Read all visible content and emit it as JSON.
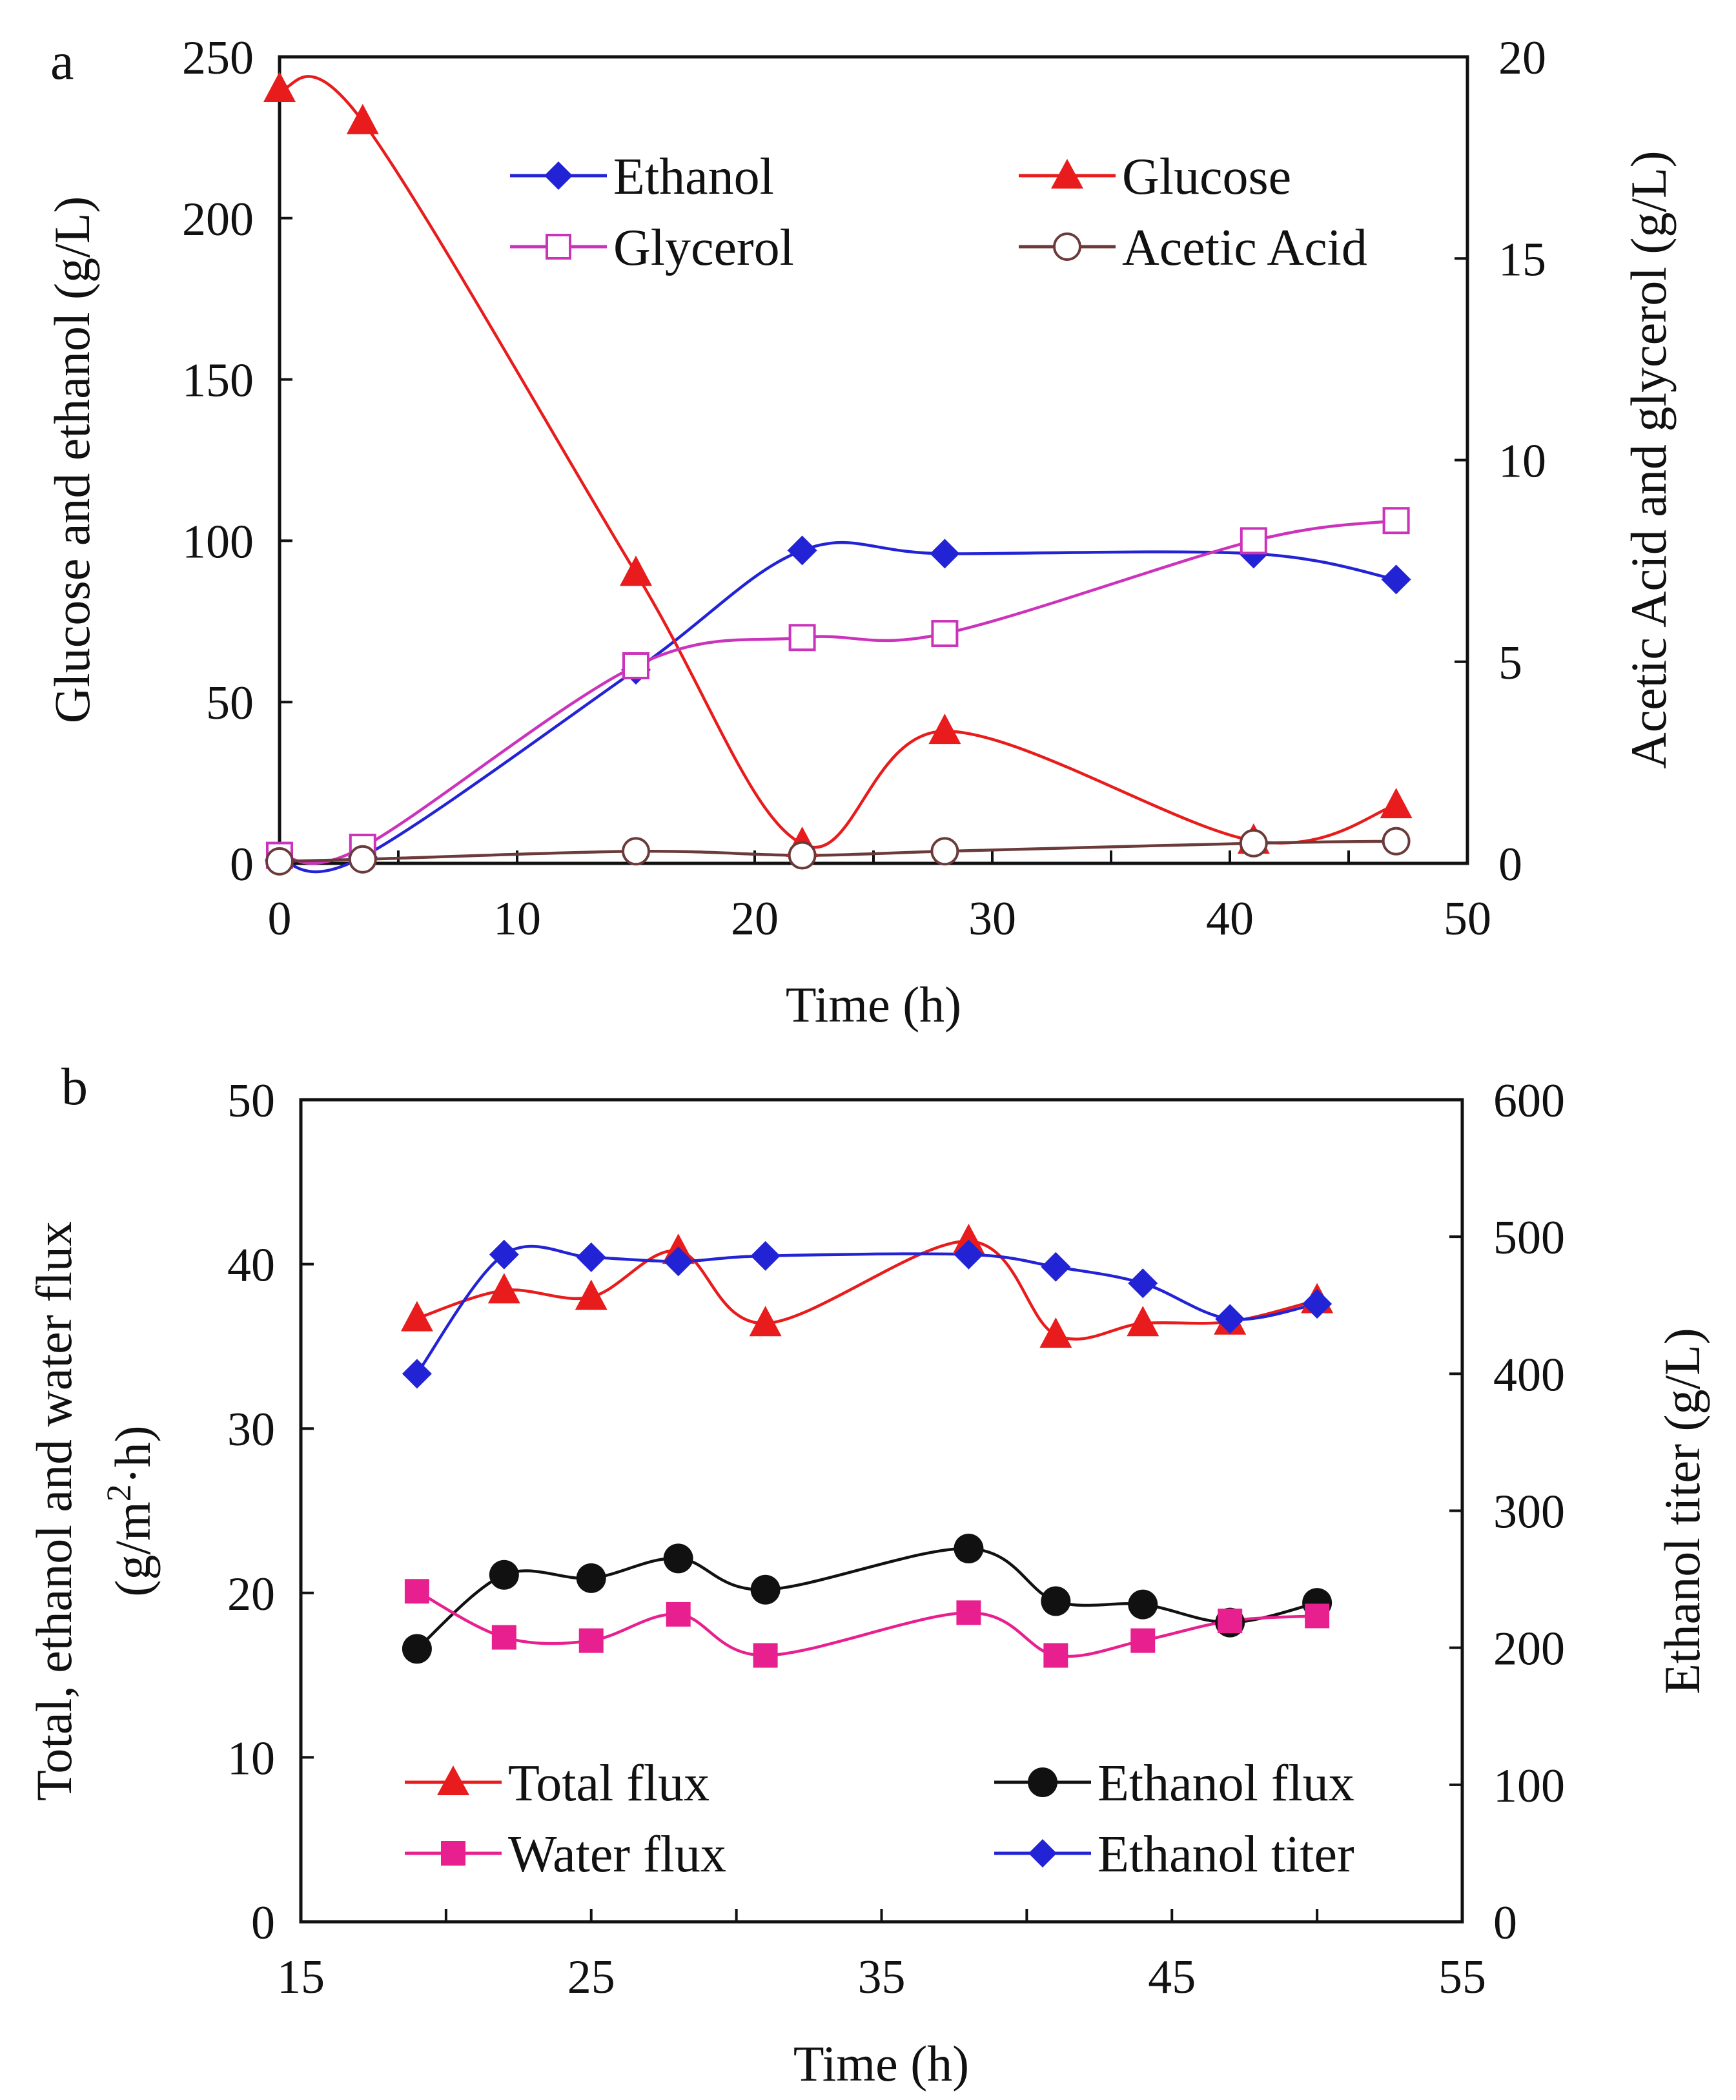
{
  "chart_data": [
    {
      "panel": "a",
      "type": "line",
      "xlabel": "Time (h)",
      "ylabel_left": "Glucose and ethanol (g/L)",
      "ylabel_right": "Acetic Acid and glycerol (g/L)",
      "xlim": [
        0,
        50
      ],
      "ylim_left": [
        0,
        250
      ],
      "ylim_right": [
        0,
        20
      ],
      "x_ticks": [
        0,
        10,
        20,
        30,
        40,
        50
      ],
      "y_left_ticks": [
        0,
        50,
        100,
        150,
        200,
        250
      ],
      "y_right_ticks": [
        0,
        5,
        10,
        15,
        20
      ],
      "legend_position": "top",
      "series": [
        {
          "name": "Ethanol",
          "axis": "left",
          "color": "#2323d6",
          "marker": "diamond",
          "x": [
            0,
            3.5,
            15,
            22,
            28,
            41,
            47
          ],
          "values": [
            1,
            2,
            60,
            97,
            96,
            96,
            88
          ]
        },
        {
          "name": "Glucose",
          "axis": "left",
          "color": "#e81c1c",
          "marker": "triangle",
          "x": [
            0,
            3.5,
            15,
            22,
            28,
            41,
            47
          ],
          "values": [
            240,
            230,
            90,
            6,
            41,
            7,
            18
          ]
        },
        {
          "name": "Glycerol",
          "axis": "right",
          "color": "#cc33bb",
          "marker": "square-open",
          "x": [
            0,
            3.5,
            15,
            22,
            28,
            41,
            47
          ],
          "values": [
            0.2,
            0.4,
            4.9,
            5.6,
            5.7,
            8.0,
            8.5
          ]
        },
        {
          "name": "Acetic Acid",
          "axis": "right",
          "color": "#6b3a3a",
          "marker": "circle-open",
          "x": [
            0,
            3.5,
            15,
            22,
            28,
            41,
            47
          ],
          "values": [
            0.05,
            0.1,
            0.3,
            0.2,
            0.3,
            0.5,
            0.55
          ]
        }
      ]
    },
    {
      "panel": "b",
      "type": "line",
      "xlabel": "Time (h)",
      "ylabel_left_line1": "Total, ethanol and water flux",
      "ylabel_left_line2_pre": "(g/m",
      "ylabel_left_line2_sup": "2",
      "ylabel_left_line2_post": "·h)",
      "ylabel_right": "Ethanol titer (g/L)",
      "xlim": [
        15,
        55
      ],
      "ylim_left": [
        0,
        50
      ],
      "ylim_right": [
        0,
        600
      ],
      "x_ticks": [
        15,
        25,
        35,
        45,
        55
      ],
      "y_left_ticks": [
        0,
        10,
        20,
        30,
        40,
        50
      ],
      "y_right_ticks": [
        0,
        100,
        200,
        300,
        400,
        500,
        600
      ],
      "legend_position": "bottom",
      "series": [
        {
          "name": "Total flux",
          "axis": "left",
          "color": "#e81c1c",
          "marker": "triangle",
          "x": [
            19,
            22,
            25,
            28,
            31,
            38,
            41,
            44,
            47,
            50
          ],
          "values": [
            36.7,
            38.4,
            38.0,
            40.8,
            36.4,
            41.4,
            35.7,
            36.4,
            36.5,
            37.8
          ]
        },
        {
          "name": "Ethanol flux",
          "axis": "left",
          "color": "#111111",
          "marker": "circle",
          "x": [
            19,
            22,
            25,
            28,
            31,
            38,
            41,
            44,
            47,
            50
          ],
          "values": [
            16.6,
            21.1,
            20.9,
            22.1,
            20.2,
            22.7,
            19.5,
            19.3,
            18.2,
            19.4
          ]
        },
        {
          "name": "Water flux",
          "axis": "left",
          "color": "#e8208f",
          "marker": "square",
          "x": [
            19,
            22,
            25,
            28,
            31,
            38,
            41,
            44,
            47,
            50
          ],
          "values": [
            20.1,
            17.3,
            17.1,
            18.7,
            16.2,
            18.8,
            16.2,
            17.1,
            18.3,
            18.6
          ]
        },
        {
          "name": "Ethanol titer",
          "axis": "right",
          "color": "#2323d6",
          "marker": "diamond",
          "x": [
            19,
            22,
            25,
            28,
            31,
            38,
            41,
            44,
            47,
            50
          ],
          "values": [
            400,
            487,
            485,
            482,
            486,
            487,
            478,
            466,
            440,
            451
          ]
        }
      ]
    }
  ]
}
